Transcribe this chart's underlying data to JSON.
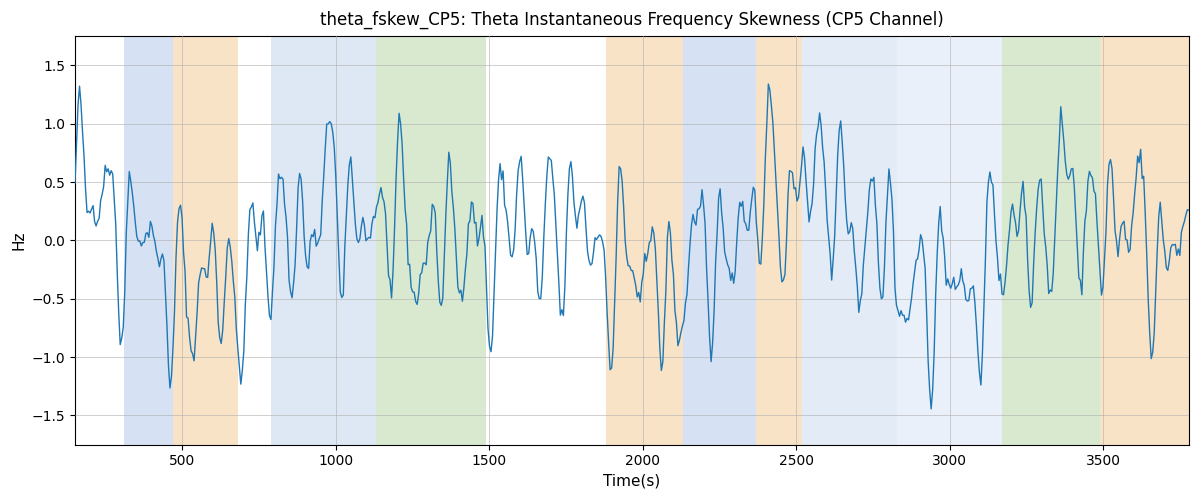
{
  "title": "theta_fskew_CP5: Theta Instantaneous Frequency Skewness (CP5 Channel)",
  "xlabel": "Time(s)",
  "ylabel": "Hz",
  "ylim": [
    -1.75,
    1.75
  ],
  "xlim": [
    150,
    3780
  ],
  "xticks": [
    500,
    1000,
    1500,
    2000,
    2500,
    3000,
    3500
  ],
  "yticks": [
    -1.5,
    -1.0,
    -0.5,
    0.0,
    0.5,
    1.0,
    1.5
  ],
  "line_color": "#1f77b4",
  "line_width": 1.0,
  "background_color": "#ffffff",
  "grid_color": "#b0b0b0",
  "colored_bands": [
    {
      "start": 310,
      "end": 470,
      "color": "#aec6e8",
      "alpha": 0.5
    },
    {
      "start": 470,
      "end": 680,
      "color": "#f5c98e",
      "alpha": 0.5
    },
    {
      "start": 790,
      "end": 1130,
      "color": "#aec6e8",
      "alpha": 0.4
    },
    {
      "start": 1130,
      "end": 1490,
      "color": "#b5d5a0",
      "alpha": 0.5
    },
    {
      "start": 1880,
      "end": 2130,
      "color": "#f5c98e",
      "alpha": 0.5
    },
    {
      "start": 2130,
      "end": 2370,
      "color": "#aec6e8",
      "alpha": 0.5
    },
    {
      "start": 2370,
      "end": 2520,
      "color": "#f5c98e",
      "alpha": 0.5
    },
    {
      "start": 2520,
      "end": 2830,
      "color": "#aec6e8",
      "alpha": 0.35
    },
    {
      "start": 2830,
      "end": 3170,
      "color": "#aec6e8",
      "alpha": 0.25
    },
    {
      "start": 3170,
      "end": 3490,
      "color": "#b5d5a0",
      "alpha": 0.5
    },
    {
      "start": 3490,
      "end": 3780,
      "color": "#f5c98e",
      "alpha": 0.5
    }
  ],
  "seed": 42,
  "time_start": 150,
  "time_end": 3780,
  "n_points": 740
}
